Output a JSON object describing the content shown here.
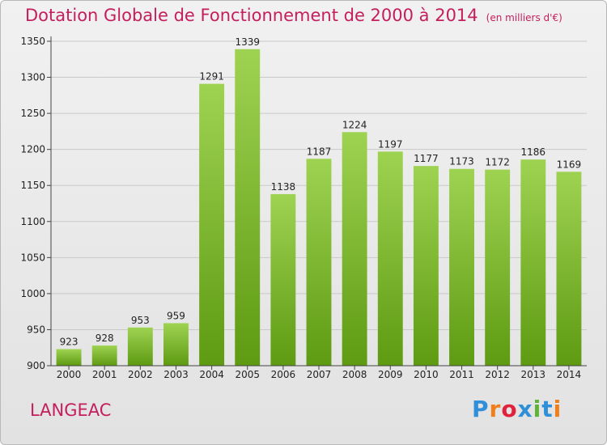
{
  "header": {
    "title": "Dotation Globale de Fonctionnement de 2000 à 2014",
    "unit": "(en milliers d'€)"
  },
  "commune": "LANGEAC",
  "logo": {
    "text": "Proxiti",
    "colors": [
      "#2f8fd8",
      "#f07e1b",
      "#e0233c",
      "#2f8fd8",
      "#5db33a",
      "#2f8fd8",
      "#f07e1b"
    ]
  },
  "colors": {
    "bar_top": "#9ed352",
    "bar_bottom": "#5e9a12",
    "title": "#c41e5c",
    "grid": "#c9c9c9"
  },
  "chart_data": {
    "type": "bar",
    "title": "Dotation Globale de Fonctionnement de 2000 à 2014",
    "xlabel": "",
    "ylabel": "",
    "categories": [
      "2000",
      "2001",
      "2002",
      "2003",
      "2004",
      "2005",
      "2006",
      "2007",
      "2008",
      "2009",
      "2010",
      "2011",
      "2012",
      "2013",
      "2014"
    ],
    "values": [
      923,
      928,
      953,
      959,
      1291,
      1339,
      1138,
      1187,
      1224,
      1197,
      1177,
      1173,
      1172,
      1186,
      1169
    ],
    "ylim": [
      900,
      1350
    ],
    "yticks": [
      900,
      950,
      1000,
      1050,
      1100,
      1150,
      1200,
      1250,
      1300,
      1350
    ],
    "grid": true
  }
}
